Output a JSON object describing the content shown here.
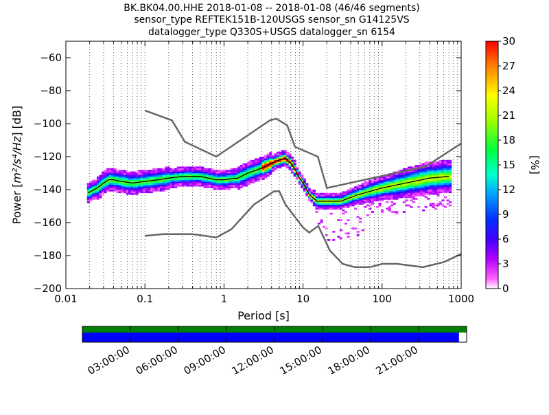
{
  "chart_data": {
    "type": "heatmap",
    "title_lines": [
      "BK.BK04.00.HHE   2018-01-08 -- 2018-01-08  (46/46 segments)",
      "sensor_type REFTEK151B-120USGS sensor_sn G14125VS",
      "datalogger_type Q330S+USGS datalogger_sn 6154"
    ],
    "xlabel": "Period [s]",
    "ylabel_prefix": "Power [",
    "ylabel_unit": "m²/s⁴/Hz",
    "ylabel_suffix": "] [dB]",
    "x_scale": "log",
    "xlim": [
      0.01,
      1000
    ],
    "ylim": [
      -200,
      -50
    ],
    "x_ticks": [
      {
        "value": 0.01,
        "label": "0.01"
      },
      {
        "value": 0.1,
        "label": "0.1"
      },
      {
        "value": 1,
        "label": "1"
      },
      {
        "value": 10,
        "label": "10"
      },
      {
        "value": 100,
        "label": "100"
      },
      {
        "value": 1000,
        "label": "1000"
      }
    ],
    "y_ticks": [
      {
        "value": -60,
        "label": "−60"
      },
      {
        "value": -80,
        "label": "−80"
      },
      {
        "value": -100,
        "label": "−100"
      },
      {
        "value": -120,
        "label": "−120"
      },
      {
        "value": -140,
        "label": "−140"
      },
      {
        "value": -160,
        "label": "−160"
      },
      {
        "value": -180,
        "label": "−180"
      },
      {
        "value": -200,
        "label": "−200"
      }
    ],
    "grid": "dotted vertical at period decades",
    "colorbar": {
      "label": "[%]",
      "range": [
        0,
        30
      ],
      "ticks": [
        "0",
        "3",
        "6",
        "9",
        "12",
        "15",
        "18",
        "21",
        "24",
        "27",
        "30"
      ]
    },
    "new_high_noise_model": [
      [
        0.1,
        -92
      ],
      [
        0.22,
        -98
      ],
      [
        0.32,
        -111
      ],
      [
        0.8,
        -120
      ],
      [
        3.8,
        -98
      ],
      [
        4.6,
        -97
      ],
      [
        6.3,
        -101
      ],
      [
        7.9,
        -114
      ],
      [
        15.4,
        -120
      ],
      [
        20,
        -139
      ],
      [
        354.8,
        -126
      ],
      [
        1000,
        -112
      ]
    ],
    "new_low_noise_model": [
      [
        0.1,
        -168
      ],
      [
        0.17,
        -167
      ],
      [
        0.4,
        -167
      ],
      [
        0.8,
        -169
      ],
      [
        1.24,
        -164
      ],
      [
        2.4,
        -149
      ],
      [
        4.3,
        -141
      ],
      [
        5,
        -141
      ],
      [
        6,
        -149
      ],
      [
        10,
        -163
      ],
      [
        12,
        -166
      ],
      [
        15.6,
        -162
      ],
      [
        21.9,
        -177
      ],
      [
        31.6,
        -185
      ],
      [
        45,
        -187
      ],
      [
        70,
        -187
      ],
      [
        101,
        -185
      ],
      [
        154,
        -185
      ],
      [
        328,
        -187
      ],
      [
        600,
        -184
      ],
      [
        1000,
        -179
      ]
    ],
    "mode_curve": [
      [
        0.019,
        -142
      ],
      [
        0.025,
        -139
      ],
      [
        0.03,
        -136
      ],
      [
        0.035,
        -134
      ],
      [
        0.04,
        -134
      ],
      [
        0.05,
        -135
      ],
      [
        0.07,
        -136
      ],
      [
        0.1,
        -135
      ],
      [
        0.15,
        -134
      ],
      [
        0.2,
        -133
      ],
      [
        0.3,
        -132
      ],
      [
        0.5,
        -132
      ],
      [
        0.8,
        -134
      ],
      [
        1.0,
        -134
      ],
      [
        1.5,
        -133
      ],
      [
        2.0,
        -130
      ],
      [
        3.0,
        -127
      ],
      [
        4.0,
        -124
      ],
      [
        5.0,
        -122
      ],
      [
        6.0,
        -121
      ],
      [
        7.0,
        -124
      ],
      [
        8.0,
        -128
      ],
      [
        9.0,
        -133
      ],
      [
        10.0,
        -136
      ],
      [
        12.0,
        -143
      ],
      [
        15.0,
        -147
      ],
      [
        20.0,
        -147
      ],
      [
        30.0,
        -147
      ],
      [
        50.0,
        -143
      ],
      [
        100.0,
        -139
      ],
      [
        200.0,
        -136
      ],
      [
        400.0,
        -133
      ],
      [
        700.0,
        -132
      ]
    ],
    "ppsd_density_range_percent": [
      0,
      30
    ],
    "data_coverage": {
      "time_ticks": [
        "03:00:00",
        "06:00:00",
        "09:00:00",
        "12:00:00",
        "15:00:00",
        "18:00:00",
        "21:00:00"
      ],
      "data_fraction": 1.0,
      "processed_fraction": 0.98
    }
  }
}
